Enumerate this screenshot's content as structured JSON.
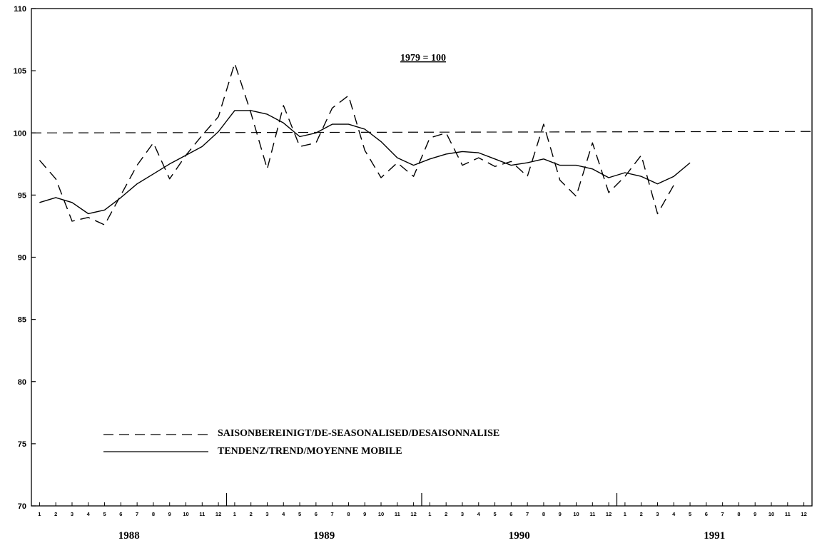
{
  "chart_data": {
    "type": "line",
    "annotation": "1979 = 100",
    "ylim": [
      70,
      110
    ],
    "y_ticks": [
      "70",
      "75",
      "80",
      "85",
      "90",
      "95",
      "100",
      "105",
      "110"
    ],
    "month_ticks": [
      "1",
      "2",
      "3",
      "4",
      "5",
      "6",
      "7",
      "8",
      "9",
      "10",
      "11",
      "12",
      "1",
      "2",
      "3",
      "4",
      "5",
      "6",
      "7",
      "8",
      "9",
      "10",
      "11",
      "12",
      "1",
      "2",
      "3",
      "4",
      "5",
      "6",
      "7",
      "8",
      "9",
      "10",
      "11",
      "12",
      "1",
      "2",
      "3",
      "4",
      "5",
      "6",
      "7",
      "8",
      "9",
      "10",
      "11",
      "12"
    ],
    "years": [
      "1988",
      "1989",
      "1990",
      "1991"
    ],
    "reference_line": 100,
    "grid": false,
    "legend_position": "bottom-left",
    "series": [
      {
        "name": "SAISONBEREINIGT/DE-SEASONALISED/DESAISONNALISE",
        "style": "dashed",
        "start": "1988-01",
        "values": [
          97.8,
          96.3,
          92.9,
          93.2,
          92.6,
          95.0,
          97.4,
          99.2,
          96.3,
          98.2,
          99.8,
          101.3,
          105.6,
          101.6,
          97.1,
          102.2,
          98.9,
          99.2,
          102.0,
          103.0,
          98.6,
          96.4,
          97.6,
          96.5,
          99.6,
          100.0,
          97.4,
          98.0,
          97.3,
          97.7,
          96.5,
          100.7,
          96.2,
          94.9,
          99.2,
          95.2,
          96.5,
          98.2,
          93.5,
          95.8
        ]
      },
      {
        "name": "TENDENZ/TREND/MOYENNE MOBILE",
        "style": "solid",
        "start": "1988-01",
        "values": [
          94.4,
          94.8,
          94.4,
          93.5,
          93.8,
          94.8,
          95.9,
          96.7,
          97.5,
          98.2,
          98.9,
          100.1,
          101.8,
          101.8,
          101.5,
          100.8,
          99.7,
          100.0,
          100.7,
          100.7,
          100.3,
          99.3,
          98.0,
          97.4,
          97.9,
          98.3,
          98.5,
          98.4,
          97.9,
          97.4,
          97.6,
          97.9,
          97.4,
          97.4,
          97.1,
          96.4,
          96.8,
          96.5,
          95.9,
          96.5,
          97.6
        ]
      }
    ]
  }
}
